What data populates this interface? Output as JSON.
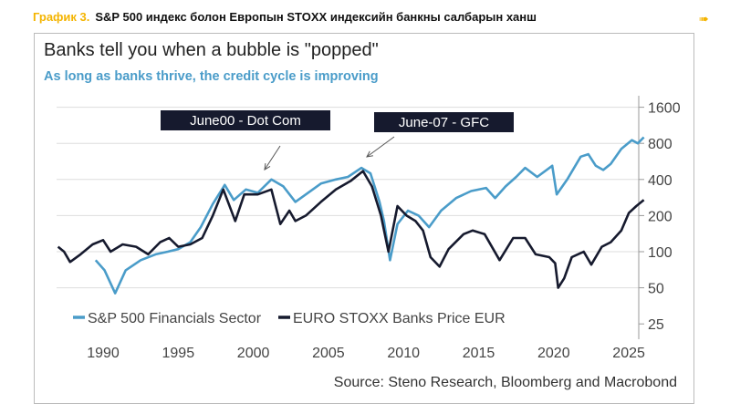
{
  "header": {
    "label": "График 3.",
    "title": "S&P 500 индекс болон Европын STOXX индексийн банкны салбарын ханш"
  },
  "chart_data": {
    "type": "line",
    "title": "Banks tell you when a bubble is \"popped\"",
    "subtitle": "As long as banks thrive, the credit cycle is improving",
    "source": "Source: Steno Research, Bloomberg and Macrobond",
    "y_scale": "log2",
    "ylim": [
      20,
      1800
    ],
    "xlim": [
      1987,
      2027
    ],
    "yticks": [
      1600,
      800,
      400,
      200,
      100,
      50,
      25
    ],
    "xticks": [
      1990,
      1995,
      2000,
      2005,
      2010,
      2015,
      2020,
      2025
    ],
    "legend_position": "bottom-left",
    "annotations": [
      {
        "text": "June00 - Dot Com",
        "x": 2000.3,
        "y": 400
      },
      {
        "text": "June-07 - GFC",
        "x": 2007.4,
        "y": 480
      }
    ],
    "series": [
      {
        "name": "S&P 500 Financials Sector",
        "color": "#4a9cc9",
        "points": [
          [
            1989.5,
            85
          ],
          [
            1990.1,
            70
          ],
          [
            1990.8,
            45
          ],
          [
            1991.5,
            70
          ],
          [
            1992.5,
            85
          ],
          [
            1993.5,
            95
          ],
          [
            1994.3,
            100
          ],
          [
            1995,
            105
          ],
          [
            1995.8,
            120
          ],
          [
            1996.5,
            160
          ],
          [
            1997.3,
            250
          ],
          [
            1998.1,
            360
          ],
          [
            1998.7,
            270
          ],
          [
            1999.5,
            330
          ],
          [
            2000.3,
            310
          ],
          [
            2001.2,
            400
          ],
          [
            2002,
            350
          ],
          [
            2002.8,
            260
          ],
          [
            2003.5,
            300
          ],
          [
            2004.5,
            370
          ],
          [
            2005.5,
            400
          ],
          [
            2006.3,
            420
          ],
          [
            2007.2,
            500
          ],
          [
            2007.8,
            450
          ],
          [
            2008.4,
            260
          ],
          [
            2008.7,
            180
          ],
          [
            2009.1,
            85
          ],
          [
            2009.6,
            170
          ],
          [
            2010.3,
            220
          ],
          [
            2011,
            200
          ],
          [
            2011.7,
            160
          ],
          [
            2012.5,
            220
          ],
          [
            2013.5,
            280
          ],
          [
            2014.5,
            320
          ],
          [
            2015.5,
            340
          ],
          [
            2016.1,
            280
          ],
          [
            2016.8,
            350
          ],
          [
            2017.5,
            420
          ],
          [
            2018.1,
            500
          ],
          [
            2018.9,
            420
          ],
          [
            2019.9,
            520
          ],
          [
            2020.2,
            300
          ],
          [
            2020.9,
            400
          ],
          [
            2021.8,
            620
          ],
          [
            2022.3,
            650
          ],
          [
            2022.8,
            520
          ],
          [
            2023.3,
            480
          ],
          [
            2023.8,
            540
          ],
          [
            2024.5,
            720
          ],
          [
            2025.2,
            850
          ],
          [
            2025.6,
            800
          ],
          [
            2026,
            900
          ]
        ]
      },
      {
        "name": "EURO STOXX Banks Price EUR",
        "color": "#161a2e",
        "points": [
          [
            1987,
            110
          ],
          [
            1987.4,
            100
          ],
          [
            1987.8,
            82
          ],
          [
            1988.5,
            95
          ],
          [
            1989.3,
            115
          ],
          [
            1990,
            125
          ],
          [
            1990.5,
            100
          ],
          [
            1991.3,
            115
          ],
          [
            1992.2,
            110
          ],
          [
            1993,
            95
          ],
          [
            1993.8,
            120
          ],
          [
            1994.4,
            130
          ],
          [
            1995,
            110
          ],
          [
            1995.8,
            115
          ],
          [
            1996.6,
            130
          ],
          [
            1997.3,
            200
          ],
          [
            1998,
            330
          ],
          [
            1998.8,
            180
          ],
          [
            1999.4,
            300
          ],
          [
            2000.3,
            300
          ],
          [
            2001.2,
            330
          ],
          [
            2001.8,
            170
          ],
          [
            2002.4,
            220
          ],
          [
            2002.8,
            180
          ],
          [
            2003.5,
            200
          ],
          [
            2004.5,
            260
          ],
          [
            2005.5,
            330
          ],
          [
            2006.5,
            390
          ],
          [
            2007.3,
            470
          ],
          [
            2007.9,
            350
          ],
          [
            2008.5,
            200
          ],
          [
            2009,
            100
          ],
          [
            2009.6,
            240
          ],
          [
            2010.2,
            200
          ],
          [
            2010.8,
            180
          ],
          [
            2011.3,
            150
          ],
          [
            2011.8,
            90
          ],
          [
            2012.4,
            75
          ],
          [
            2013,
            105
          ],
          [
            2014,
            140
          ],
          [
            2014.6,
            150
          ],
          [
            2015.4,
            140
          ],
          [
            2016.4,
            85
          ],
          [
            2017.3,
            130
          ],
          [
            2018.1,
            130
          ],
          [
            2018.8,
            95
          ],
          [
            2019.7,
            90
          ],
          [
            2020.1,
            80
          ],
          [
            2020.3,
            50
          ],
          [
            2020.7,
            60
          ],
          [
            2021.2,
            90
          ],
          [
            2022,
            100
          ],
          [
            2022.5,
            78
          ],
          [
            2023.2,
            110
          ],
          [
            2023.8,
            120
          ],
          [
            2024.5,
            150
          ],
          [
            2025,
            210
          ],
          [
            2025.5,
            240
          ],
          [
            2026,
            270
          ]
        ]
      }
    ]
  }
}
